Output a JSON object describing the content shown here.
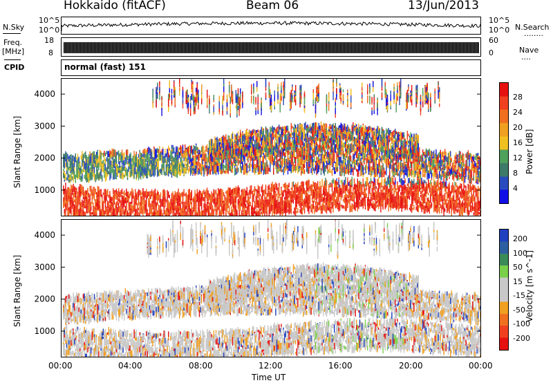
{
  "header": {
    "station": "Hokkaido (fitACF)",
    "beam": "Beam 06",
    "date": "13/Jun/2013"
  },
  "side_labels": {
    "nsky": "N.Sky",
    "freq_line1": "Freq.",
    "freq_line2": "[MHz]",
    "cpid": "CPID",
    "nsearch": "N.Search",
    "nsearch_dots": "........",
    "nave": "Nave",
    "nave_dots": "...."
  },
  "noise_axis": {
    "left_top": "10^5",
    "left_bottom": "10^0",
    "right_top": "10^5",
    "right_bottom": "10^0"
  },
  "freq_axis": {
    "left_top": "18",
    "left_bottom": "8",
    "right_top": "60",
    "right_bottom": "0"
  },
  "cpid_text": "normal (fast) 151",
  "x_axis": {
    "label": "Time UT",
    "ticks": [
      "00:00",
      "04:00",
      "08:00",
      "12:00",
      "16:00",
      "20:00",
      "00:00"
    ]
  },
  "colors": {
    "power": [
      "#1010e6",
      "#2a4bbf",
      "#3e7a6a",
      "#4fa05a",
      "#f0c020",
      "#f0a020",
      "#f07020",
      "#f04020",
      "#e61010"
    ],
    "velocity": [
      "#2040c0",
      "#2e5fa0",
      "#3a8a5a",
      "#7ad04a",
      "#c8c8c8",
      "#c8c8c8",
      "#f0a020",
      "#f07020",
      "#f04020",
      "#e61010"
    ]
  },
  "chart_data": [
    {
      "type": "heatmap",
      "title": "Power",
      "ylabel": "Slant Range [km]",
      "xlabel": "",
      "ylim": [
        180,
        4500
      ],
      "xlim": [
        "00:00",
        "24:00"
      ],
      "yticks": [
        1000,
        2000,
        3000,
        4000
      ],
      "colorbar": {
        "label": "Power [dB]",
        "ticks": [
          4,
          8,
          12,
          16,
          20,
          24,
          28
        ]
      }
    },
    {
      "type": "heatmap",
      "title": "Velocity",
      "ylabel": "Slant Range [km]",
      "xlabel": "Time UT",
      "ylim": [
        180,
        4500
      ],
      "xlim": [
        "00:00",
        "24:00"
      ],
      "yticks": [
        1000,
        2000,
        3000,
        4000
      ],
      "colorbar": {
        "label": "Velocity [m s^-1]",
        "ticks": [
          200,
          100,
          50,
          15,
          -15,
          -50,
          -100,
          -200
        ]
      }
    }
  ]
}
